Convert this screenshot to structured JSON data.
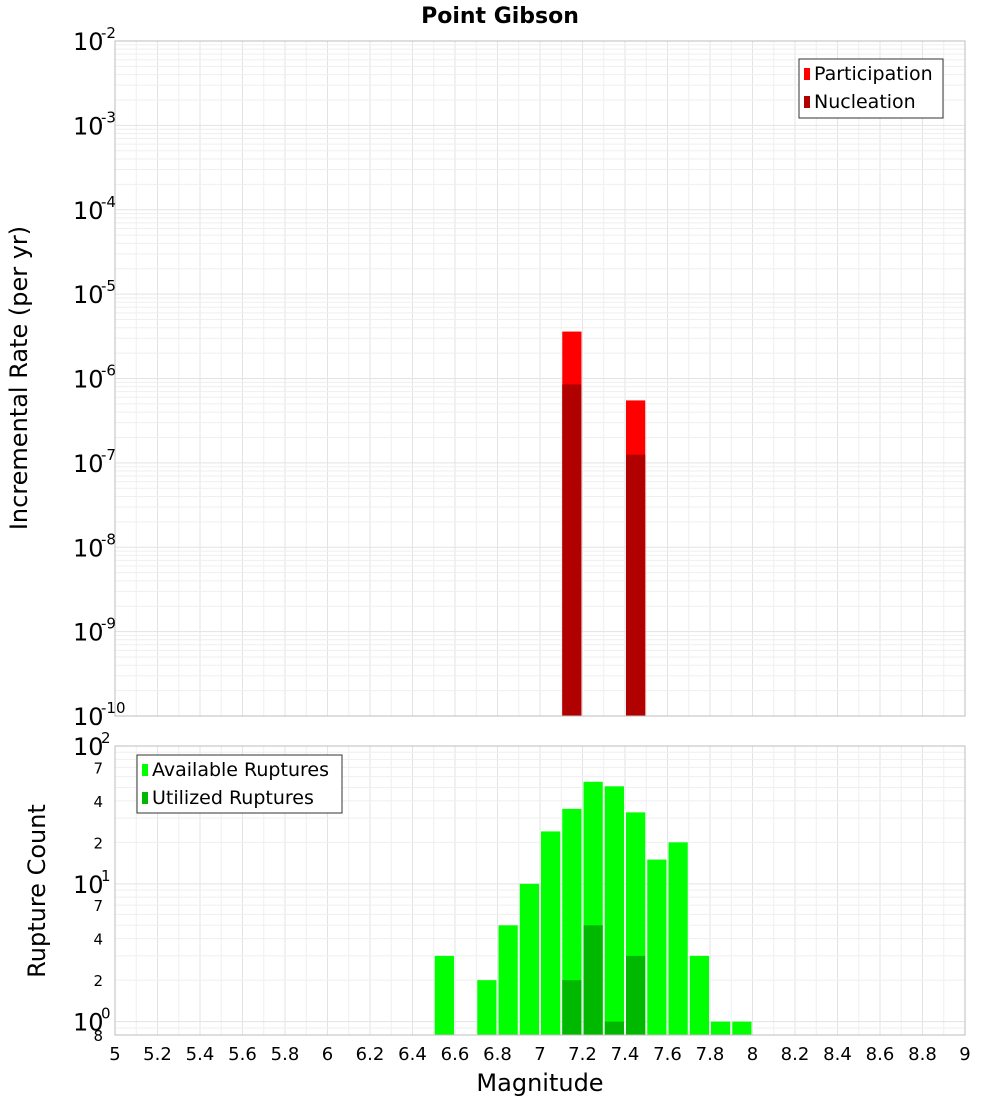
{
  "chart_data": [
    {
      "type": "bar",
      "title": "Point Gibson",
      "ylabel": "Incremental Rate (per yr)",
      "xlabel": "",
      "yscale": "log",
      "xlim": [
        5,
        9
      ],
      "ylim": [
        1e-10,
        0.01
      ],
      "y_ticks": [
        {
          "base": "10",
          "exp": "-2",
          "value": 0.01
        },
        {
          "base": "10",
          "exp": "-3",
          "value": 0.001
        },
        {
          "base": "10",
          "exp": "-4",
          "value": 0.0001
        },
        {
          "base": "10",
          "exp": "-5",
          "value": 1e-05
        },
        {
          "base": "10",
          "exp": "-6",
          "value": 1e-06
        },
        {
          "base": "10",
          "exp": "-7",
          "value": 1e-07
        },
        {
          "base": "10",
          "exp": "-8",
          "value": 1e-08
        },
        {
          "base": "10",
          "exp": "-9",
          "value": 1e-09
        },
        {
          "base": "10",
          "exp": "-10",
          "value": 1e-10
        }
      ],
      "bar_width": 0.1,
      "series": [
        {
          "name": "Participation",
          "color": "#ff0000",
          "x": [
            7.15,
            7.45
          ],
          "values": [
            3.6e-06,
            5.5e-07
          ]
        },
        {
          "name": "Nucleation",
          "color": "#b00000",
          "x": [
            7.15,
            7.45
          ],
          "values": [
            8.5e-07,
            1.25e-07
          ]
        }
      ],
      "legend": "top-right",
      "grid": true
    },
    {
      "type": "bar",
      "title": "",
      "ylabel": "Rupture Count",
      "xlabel": "Magnitude",
      "yscale": "log",
      "xlim": [
        5,
        9
      ],
      "ylim": [
        0.8,
        100
      ],
      "x_ticks": [
        "5",
        "5.2",
        "5.4",
        "5.6",
        "5.8",
        "6",
        "6.2",
        "6.4",
        "6.6",
        "6.8",
        "7",
        "7.2",
        "7.4",
        "7.6",
        "7.8",
        "8",
        "8.2",
        "8.4",
        "8.6",
        "8.8",
        "9"
      ],
      "y_ticks": [
        {
          "base": "10",
          "exp": "2",
          "value": 100
        },
        {
          "base": "10",
          "exp": "1",
          "value": 10
        },
        {
          "base": "10",
          "exp": "0",
          "value": 1
        }
      ],
      "y_minor_labels": [
        {
          "label": "7",
          "value": 70
        },
        {
          "label": "4",
          "value": 40
        },
        {
          "label": "2",
          "value": 20
        },
        {
          "label": "7",
          "value": 7
        },
        {
          "label": "4",
          "value": 4
        },
        {
          "label": "2",
          "value": 2
        },
        {
          "label": "8",
          "value": 0.8
        }
      ],
      "bar_width": 0.1,
      "series": [
        {
          "name": "Available Ruptures",
          "color": "#00ff00",
          "x": [
            6.55,
            6.75,
            6.85,
            6.95,
            7.05,
            7.15,
            7.25,
            7.35,
            7.45,
            7.55,
            7.65,
            7.75,
            7.85,
            7.95
          ],
          "values": [
            3,
            2,
            5,
            10,
            24,
            35,
            55,
            51,
            33,
            15,
            20,
            3,
            1,
            1
          ]
        },
        {
          "name": "Utilized Ruptures",
          "color": "#00b800",
          "x": [
            7.15,
            7.25,
            7.35,
            7.45
          ],
          "values": [
            2,
            5,
            1,
            3
          ]
        }
      ],
      "legend": "top-left",
      "grid": true
    }
  ]
}
